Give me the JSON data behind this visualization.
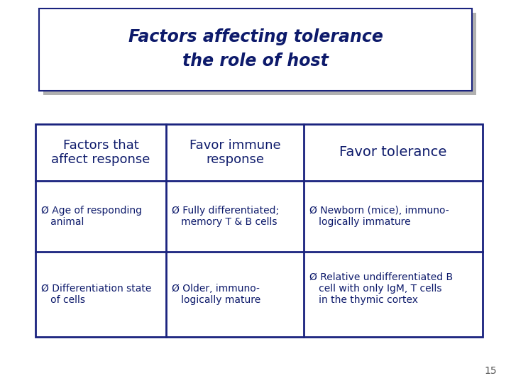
{
  "title_line1": "Factors affecting tolerance",
  "title_line2": "the role of host",
  "title_color": "#0d1a6b",
  "title_box_bg": "#ffffff",
  "title_box_border": "#1a237e",
  "bg_color": "#ffffff",
  "table_border_color": "#1a237e",
  "col_headers": [
    "Factors that\naffect response",
    "Favor immune\nresponse",
    "Favor tolerance"
  ],
  "col_header_color": "#0d1a6b",
  "row1_col1": "Ø Age of responding\n   animal",
  "row1_col2": "Ø Fully differentiated;\n   memory T & B cells",
  "row1_col3": "Ø Newborn (mice), immuno-\n   logically immature",
  "row2_col1": "Ø Differentiation state\n   of cells",
  "row2_col2": "Ø Older, immuno-\n   logically mature",
  "row2_col3": "Ø Relative undifferentiated B\n   cell with only IgM, T cells\n   in the thymic cortex",
  "cell_text_color": "#0d1a6b",
  "page_number": "15",
  "shadow_color": "#b0b0b0",
  "title_fontsize": 17,
  "header_fontsize": 13,
  "cell_fontsize": 10
}
